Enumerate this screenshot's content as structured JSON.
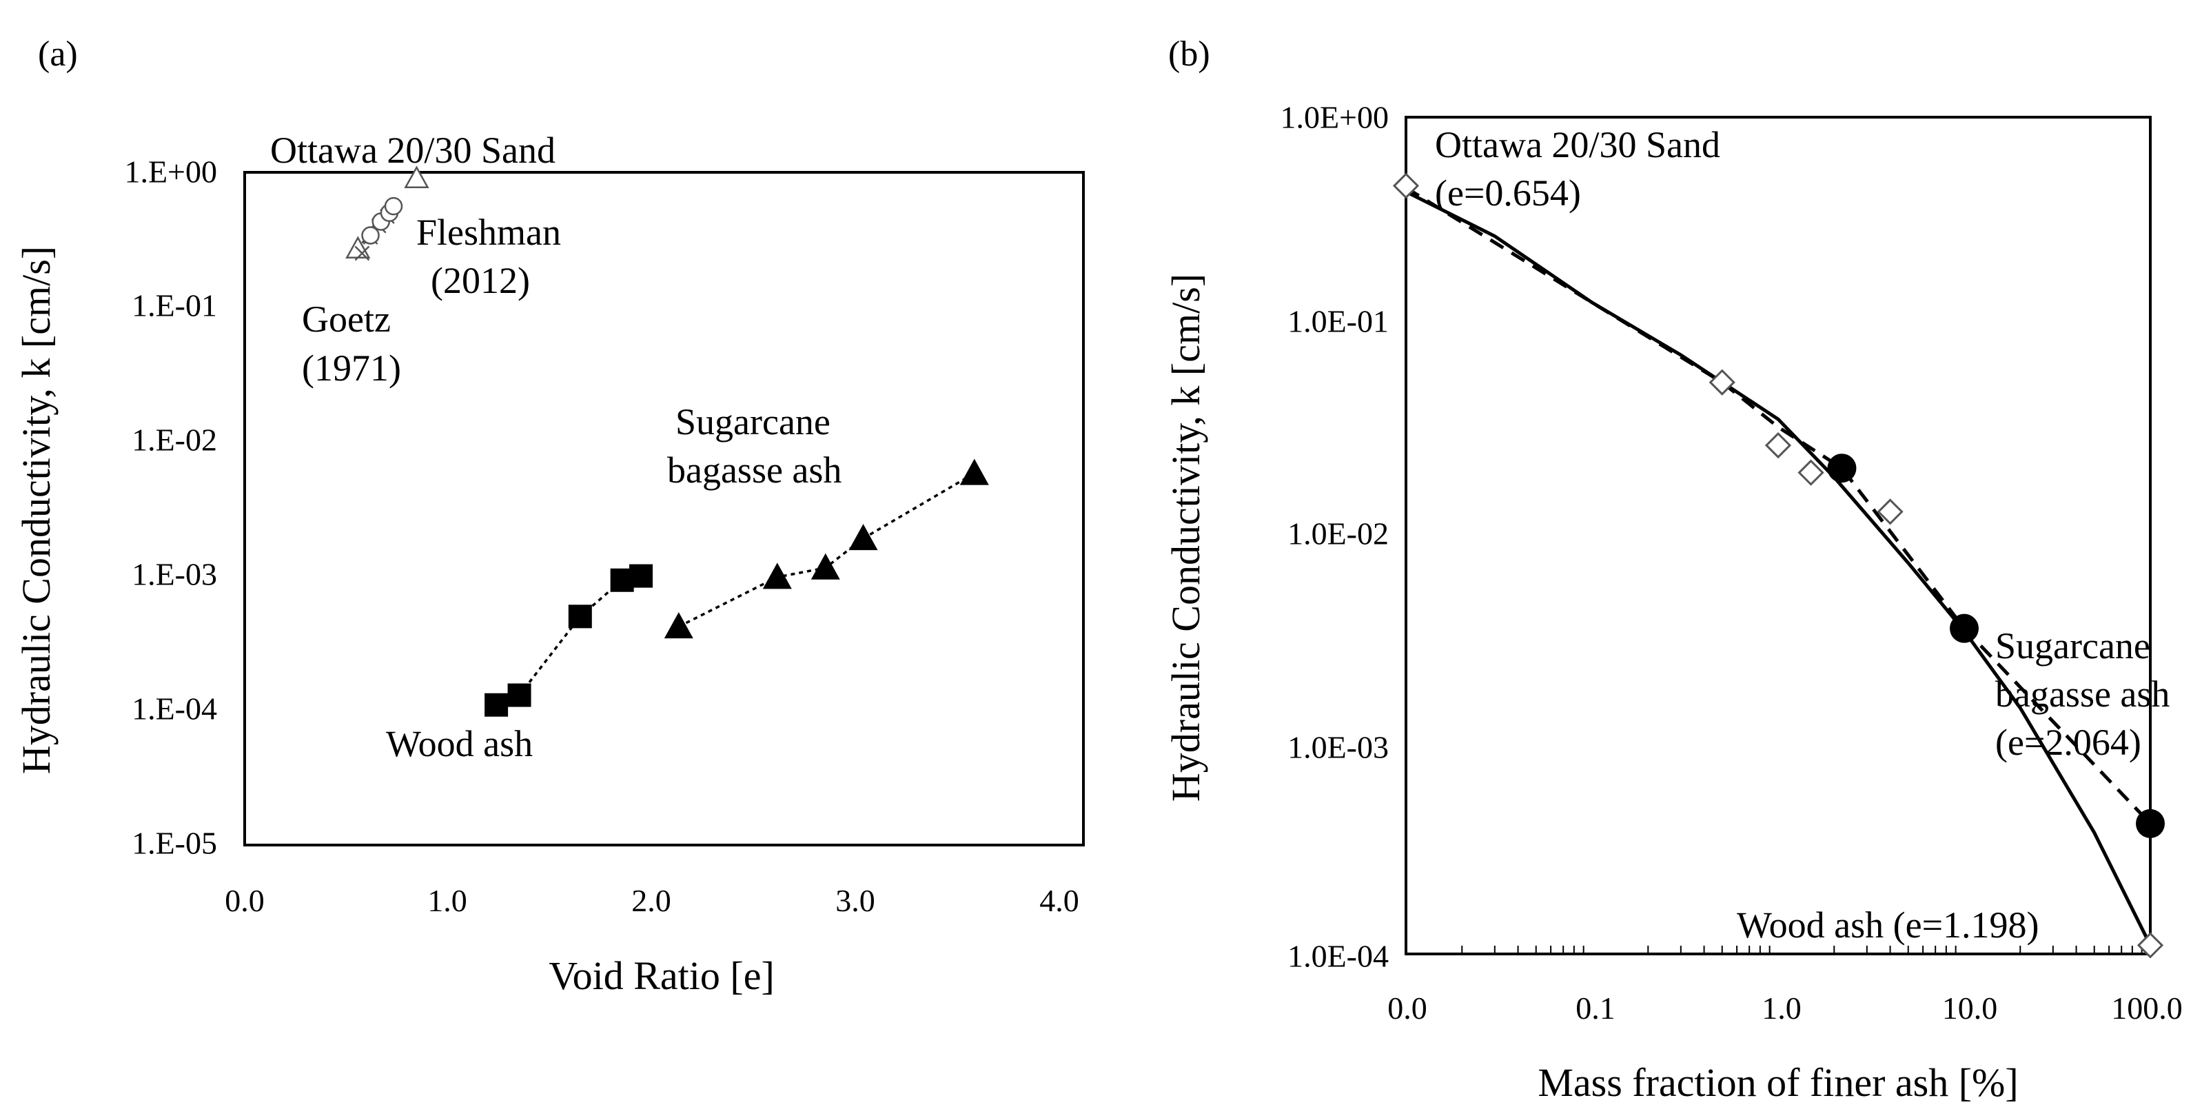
{
  "chart_data": [
    {
      "panel_label": "(a)",
      "type": "scatter",
      "xscale": "linear",
      "yscale": "log",
      "xlim": [
        0.0,
        4.0
      ],
      "ylim": [
        1e-05,
        1.0
      ],
      "xlabel": "Void Ratio [e]",
      "ylabel": "Hydraulic Conductivity, k [cm/s]",
      "xticks": [
        {
          "value": 0.0,
          "label": "0.0"
        },
        {
          "value": 1.0,
          "label": "1.0"
        },
        {
          "value": 2.0,
          "label": "2.0"
        },
        {
          "value": 3.0,
          "label": "3.0"
        },
        {
          "value": 4.0,
          "label": "4.0"
        }
      ],
      "yticks": [
        {
          "value": 1e-05,
          "label": "1.E-05"
        },
        {
          "value": 0.0001,
          "label": "1.E-04"
        },
        {
          "value": 0.001,
          "label": "1.E-03"
        },
        {
          "value": 0.01,
          "label": "1.E-02"
        },
        {
          "value": 0.1,
          "label": "1.E-01"
        },
        {
          "value": 1.0,
          "label": "1.E+00"
        }
      ],
      "series": [
        {
          "name": "Ottawa 20/30 Sand",
          "marker": "triangle-open",
          "x": [
            0.54,
            0.82
          ],
          "y": [
            0.27,
            0.9
          ]
        },
        {
          "name": "Goetz (1971)",
          "marker": "cross",
          "x": [
            0.56,
            0.6,
            0.64,
            0.68
          ],
          "y": [
            0.25,
            0.33,
            0.4,
            0.47
          ],
          "trend": {
            "x": [
              0.56,
              0.68
            ],
            "y": [
              0.3,
              0.45
            ]
          }
        },
        {
          "name": "Fleshman (2012)",
          "marker": "circle-open",
          "x": [
            0.6,
            0.65,
            0.69,
            0.71
          ],
          "y": [
            0.34,
            0.43,
            0.5,
            0.56
          ],
          "trend": {
            "x": [
              0.58,
              0.72
            ],
            "y": [
              0.35,
              0.6
            ]
          }
        },
        {
          "name": "Wood ash",
          "marker": "square-filled",
          "x": [
            1.2,
            1.31,
            1.6,
            1.8,
            1.89
          ],
          "y": [
            0.00011,
            0.00013,
            0.0005,
            0.00093,
            0.001
          ],
          "trend": {
            "x": [
              1.2,
              1.31,
              1.6,
              1.8,
              1.89
            ],
            "y": [
              0.00011,
              0.00013,
              0.0005,
              0.00093,
              0.001
            ]
          }
        },
        {
          "name": "Sugarcane bagasse ash",
          "marker": "triangle-filled",
          "x": [
            2.07,
            2.54,
            2.77,
            2.95,
            3.48
          ],
          "y": [
            0.00042,
            0.00098,
            0.00115,
            0.0019,
            0.0058
          ],
          "trend": {
            "x": [
              2.07,
              2.54,
              2.77,
              2.95,
              3.48
            ],
            "y": [
              0.00042,
              0.00098,
              0.00115,
              0.0019,
              0.0058
            ]
          }
        }
      ],
      "annotations": [
        {
          "id": "ottawa",
          "text": "Ottawa 20/30 Sand"
        },
        {
          "id": "fleshman1",
          "text": "Fleshman"
        },
        {
          "id": "fleshman2",
          "text": "(2012)"
        },
        {
          "id": "goetz1",
          "text": "Goetz"
        },
        {
          "id": "goetz2",
          "text": "(1971)"
        },
        {
          "id": "sugar1",
          "text": "Sugarcane"
        },
        {
          "id": "sugar2",
          "text": "bagasse ash"
        },
        {
          "id": "wood",
          "text": "Wood ash"
        }
      ]
    },
    {
      "panel_label": "(b)",
      "type": "scatter",
      "xscale": "log",
      "yscale": "log",
      "xlim": [
        0.01,
        100.0
      ],
      "ylim": [
        0.0001,
        1.0
      ],
      "xlabel": "Mass fraction of finer ash [%]",
      "ylabel": "Hydraulic Conductivity, k [cm/s]",
      "xticks": [
        {
          "value": 0.01,
          "label": "0.0"
        },
        {
          "value": 0.1,
          "label": "0.1"
        },
        {
          "value": 1.0,
          "label": "1.0"
        },
        {
          "value": 10.0,
          "label": "10.0"
        },
        {
          "value": 100.0,
          "label": "100.0"
        }
      ],
      "yticks": [
        {
          "value": 0.0001,
          "label": "1.0E-04"
        },
        {
          "value": 0.001,
          "label": "1.0E-03"
        },
        {
          "value": 0.01,
          "label": "1.0E-02"
        },
        {
          "value": 0.1,
          "label": "1.0E-01"
        },
        {
          "value": 1.0,
          "label": "1.0E+00"
        }
      ],
      "series": [
        {
          "name": "Wood ash mixtures",
          "marker": "diamond-open",
          "x": [
            0.01,
            0.5,
            1.0,
            1.5,
            4.0,
            100.0
          ],
          "y": [
            0.47,
            0.054,
            0.027,
            0.02,
            0.013,
            0.00011
          ]
        },
        {
          "name": "Sugarcane bagasse ash mixtures",
          "marker": "circle-filled",
          "x": [
            2.2,
            10.0,
            100.0
          ],
          "y": [
            0.021,
            0.0036,
            0.00042
          ]
        },
        {
          "name": "Wood ash trend",
          "line": "solid",
          "x": [
            0.01,
            0.03,
            0.1,
            0.3,
            1.0,
            2.0,
            5.0,
            10.0,
            20.0,
            50.0,
            100.0
          ],
          "y": [
            0.44,
            0.27,
            0.13,
            0.073,
            0.036,
            0.019,
            0.0074,
            0.0035,
            0.0015,
            0.00038,
            0.00011
          ]
        },
        {
          "name": "Sugarcane bagasse ash trend",
          "line": "dashed",
          "x": [
            0.01,
            0.1,
            0.5,
            1.0,
            2.2,
            10.0,
            100.0
          ],
          "y": [
            0.46,
            0.13,
            0.054,
            0.033,
            0.021,
            0.0036,
            0.00042
          ]
        }
      ],
      "annotations": [
        {
          "id": "ottawa1",
          "text": "Ottawa 20/30 Sand"
        },
        {
          "id": "ottawa2",
          "text": "(e=0.654)"
        },
        {
          "id": "sugar1",
          "text": "Sugarcane"
        },
        {
          "id": "sugar2",
          "text": "bagasse ash"
        },
        {
          "id": "sugar3",
          "text": "(e=2.064)"
        },
        {
          "id": "wood",
          "text": "Wood ash (e=1.198)"
        }
      ]
    }
  ]
}
